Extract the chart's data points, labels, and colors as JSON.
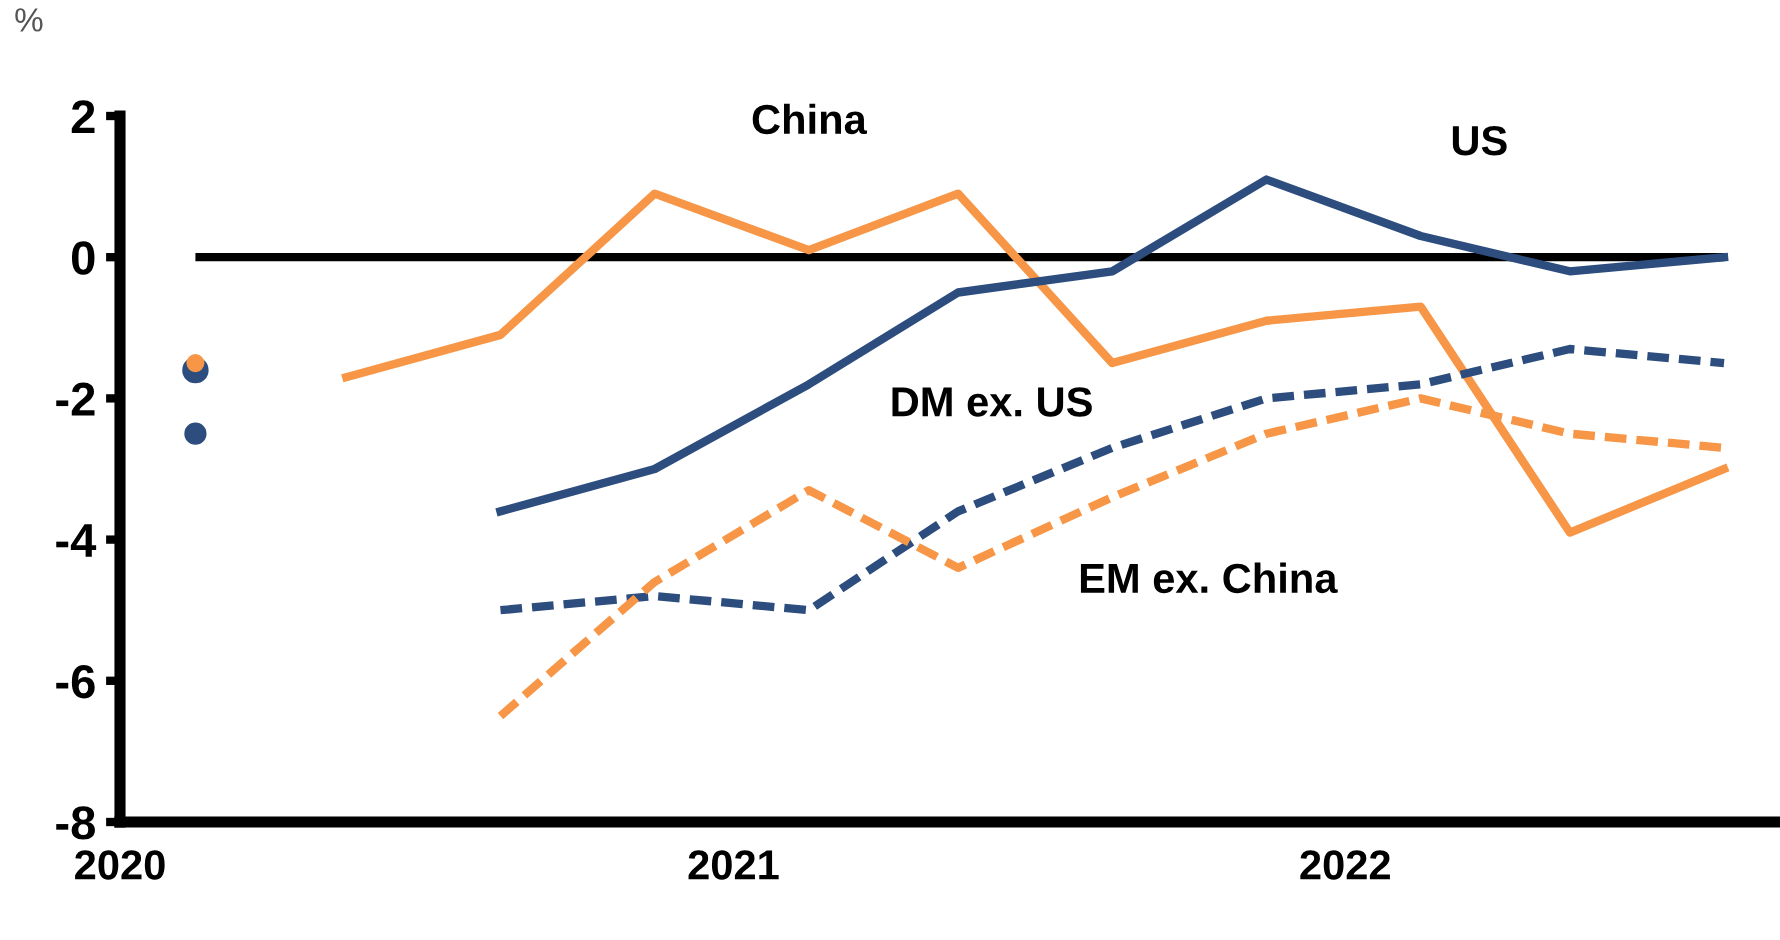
{
  "chart_data": {
    "type": "line",
    "ylabel": "%",
    "x": [
      "2020-02-15",
      "2020-05-15",
      "2020-08-15",
      "2020-11-15",
      "2021-02-15",
      "2021-05-15",
      "2021-08-15",
      "2021-11-15",
      "2022-02-15",
      "2022-05-15",
      "2022-08-15"
    ],
    "series": [
      {
        "name": "China",
        "color": "#f79646",
        "line_style": "solid",
        "values": [
          null,
          -1.7,
          -1.1,
          0.9,
          0.1,
          0.9,
          -1.5,
          -0.9,
          -0.7,
          -3.9,
          -3.0
        ]
      },
      {
        "name": "US",
        "color": "#2c4d7e",
        "line_style": "solid",
        "values": [
          -1.6,
          null,
          -3.6,
          -3.0,
          -1.8,
          -0.5,
          -0.2,
          1.1,
          0.3,
          -0.2,
          0.0
        ]
      },
      {
        "name": "DM ex. US",
        "color": "#2c4d7e",
        "line_style": "dashed",
        "values": [
          -2.5,
          null,
          -5.0,
          -4.8,
          -5.0,
          -3.6,
          -2.7,
          -2.0,
          -1.8,
          -1.3,
          -1.5
        ]
      },
      {
        "name": "EM ex. China",
        "color": "#f79646",
        "line_style": "dashed",
        "values": [
          -1.5,
          null,
          -6.5,
          -4.6,
          -3.3,
          -4.4,
          -3.4,
          -2.5,
          -2.0,
          -2.5,
          -2.7
        ]
      }
    ],
    "ref_lines": [
      {
        "axis": "y",
        "value": 0,
        "color": "#000000"
      }
    ],
    "xlim": [
      "2020-01-01",
      "2022-09-15"
    ],
    "xticks": [
      {
        "value": "2020-01-01",
        "label": "2020"
      },
      {
        "value": "2020-04-01",
        "label": null
      },
      {
        "value": "2020-07-01",
        "label": null
      },
      {
        "value": "2020-10-01",
        "label": null
      },
      {
        "value": "2021-01-01",
        "label": "2021"
      },
      {
        "value": "2021-04-01",
        "label": null
      },
      {
        "value": "2021-07-01",
        "label": null
      },
      {
        "value": "2021-10-01",
        "label": null
      },
      {
        "value": "2022-01-01",
        "label": "2022"
      },
      {
        "value": "2022-04-01",
        "label": null
      },
      {
        "value": "2022-07-01",
        "label": null
      }
    ],
    "ylim": [
      -8,
      2
    ],
    "yticks": [
      -8,
      -6,
      -4,
      -2,
      0,
      2
    ],
    "grid": false,
    "legend": false,
    "marker": "none"
  }
}
